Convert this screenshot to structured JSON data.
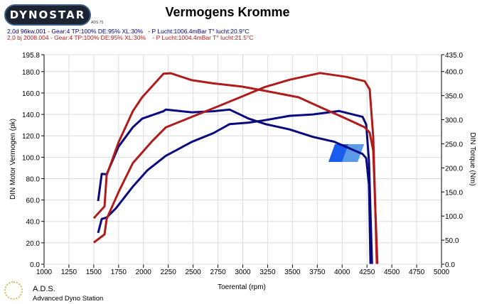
{
  "header": {
    "logo_text": "DYNOSTAR",
    "logo_sub": "ADS 75",
    "title": "Vermogens Kromme"
  },
  "legend": [
    {
      "text": "2,0d 96kw.001 - Gear:4 TP:100% DE:95% XL:30%   - P Lucht:1006.4mBar T° lucht:20.9°C",
      "color": "#000080"
    },
    {
      "text": "2,0 bj 2008.004 - Gear:4 TP:100% DE:95% XL:30%    - P Lucht:1004.4mBar T° lucht:21.5°C",
      "color": "#b01c1c"
    }
  ],
  "footer": {
    "ads_title": "A.D.S.",
    "ads_subtitle": "Advanced Dyno Station"
  },
  "chart_data": {
    "type": "line",
    "title": "Vermogens Kromme",
    "xlabel": "Toerental (rpm)",
    "ylabel": "DIN Motor Vermogen (pk)",
    "y2label": "DIN Torque (Nm)",
    "xlim": [
      1000,
      5000
    ],
    "ylim": [
      0,
      195.8
    ],
    "y2lim": [
      0,
      435
    ],
    "grid": true,
    "x_ticks": [
      "1000",
      "1250",
      "1500",
      "1750",
      "2000",
      "2250",
      "2500",
      "2750",
      "3000",
      "3250",
      "3500",
      "3750",
      "4000",
      "4250",
      "4500",
      "4750",
      "5000"
    ],
    "y_ticks": [
      "195.8",
      "180.0",
      "160.0",
      "140.0",
      "120.0",
      "100.0",
      "80.0",
      "60.0",
      "40.0",
      "20.0",
      "0.0"
    ],
    "y2_ticks": [
      "435.0",
      "400.0",
      "350.0",
      "300.0",
      "250.0",
      "200.0",
      "150.0",
      "100.0",
      "50.0",
      "0.0"
    ],
    "series": [
      {
        "name": "2,0d 96kw.001 power (pk)",
        "axis": "left",
        "color": "#0a0a80",
        "points": [
          [
            1544,
            59
          ],
          [
            1580,
            84.5
          ],
          [
            1630,
            84
          ],
          [
            1750,
            110
          ],
          [
            1893,
            128
          ],
          [
            1987,
            136
          ],
          [
            2202,
            143
          ],
          [
            2224,
            144.5
          ],
          [
            2488,
            142
          ],
          [
            2703,
            143
          ],
          [
            2868,
            144.5
          ],
          [
            3061,
            136
          ],
          [
            3225,
            131
          ],
          [
            3470,
            126
          ],
          [
            3705,
            119
          ],
          [
            3919,
            114.5
          ],
          [
            4206,
            103
          ],
          [
            4242,
            99
          ],
          [
            4270,
            74
          ],
          [
            4285,
            0
          ]
        ]
      },
      {
        "name": "2,0d 96kw.001 torque (Nm)",
        "axis": "right",
        "color": "#0a0a80",
        "points": [
          [
            1544,
            65
          ],
          [
            1580,
            94
          ],
          [
            1630,
            97
          ],
          [
            1723,
            116
          ],
          [
            1893,
            161
          ],
          [
            2040,
            195
          ],
          [
            2224,
            225
          ],
          [
            2488,
            254
          ],
          [
            2703,
            272
          ],
          [
            2868,
            291
          ],
          [
            3061,
            294
          ],
          [
            3225,
            299
          ],
          [
            3470,
            308
          ],
          [
            3705,
            311
          ],
          [
            3970,
            318
          ],
          [
            4206,
            306
          ],
          [
            4242,
            290
          ],
          [
            4270,
            214
          ],
          [
            4301,
            0
          ]
        ]
      },
      {
        "name": "2,0 bj 2008.004 power (pk)",
        "axis": "left",
        "color": "#b01c1c",
        "points": [
          [
            1500,
            43
          ],
          [
            1608,
            54
          ],
          [
            1630,
            83
          ],
          [
            1750,
            114
          ],
          [
            1893,
            143
          ],
          [
            1987,
            156
          ],
          [
            2202,
            178
          ],
          [
            2274,
            178.5
          ],
          [
            2488,
            172
          ],
          [
            2703,
            169
          ],
          [
            2990,
            166
          ],
          [
            3225,
            162
          ],
          [
            3562,
            156
          ],
          [
            3798,
            146
          ],
          [
            4041,
            136
          ],
          [
            4227,
            128
          ],
          [
            4277,
            123
          ],
          [
            4313,
            106
          ],
          [
            4334,
            52
          ],
          [
            4355,
            0
          ]
        ]
      },
      {
        "name": "2,0 bj 2008.004 torque (Nm)",
        "axis": "right",
        "color": "#b01c1c",
        "points": [
          [
            1500,
            45
          ],
          [
            1608,
            62
          ],
          [
            1630,
            94
          ],
          [
            1750,
            150
          ],
          [
            1893,
            210
          ],
          [
            2081,
            254
          ],
          [
            2224,
            284
          ],
          [
            2488,
            306
          ],
          [
            2753,
            328
          ],
          [
            2990,
            348
          ],
          [
            3225,
            368
          ],
          [
            3470,
            383
          ],
          [
            3777,
            397
          ],
          [
            4041,
            389
          ],
          [
            4227,
            380
          ],
          [
            4277,
            363
          ],
          [
            4313,
            264
          ],
          [
            4334,
            116
          ],
          [
            4349,
            0
          ]
        ]
      }
    ]
  }
}
